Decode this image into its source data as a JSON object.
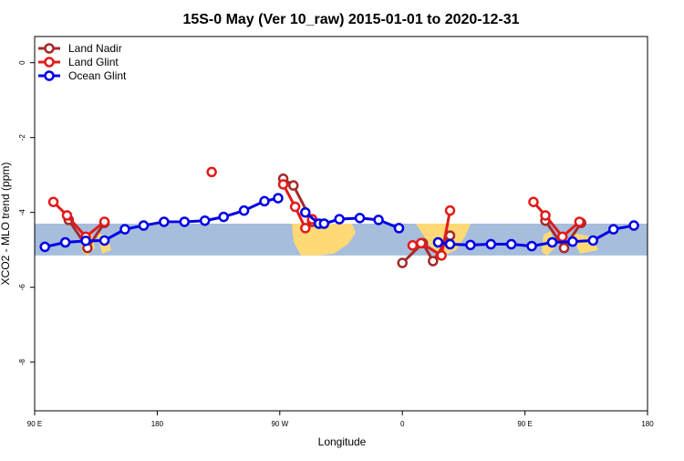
{
  "chart_data": {
    "type": "line",
    "title": "15S-0 May (Ver 10_raw)   2015-01-01 to 2020-12-31",
    "xlabel": "Longitude",
    "ylabel": "XCO2 - MLO trend (ppm)",
    "xlim": [
      90,
      450
    ],
    "ylim": [
      -9.3,
      0.7
    ],
    "x_ticks": [
      {
        "value": 90,
        "label": "90 E"
      },
      {
        "value": 162,
        "label": "180"
      },
      {
        "value": 234,
        "label": "90 W"
      },
      {
        "value": 306,
        "label": "0"
      },
      {
        "value": 378,
        "label": "90 E"
      },
      {
        "value": 450,
        "label": "180"
      }
    ],
    "y_ticks": [
      {
        "value": 0,
        "label": "0"
      },
      {
        "value": -2,
        "label": "-2"
      },
      {
        "value": -4,
        "label": "-4"
      },
      {
        "value": -6,
        "label": "-6"
      },
      {
        "value": -8,
        "label": "-8"
      }
    ],
    "map_band": {
      "y_top": -4.3,
      "y_bottom": -5.15,
      "ocean_color": "#a6bddb",
      "land_color": "#fed976"
    },
    "legend_position": "top-left",
    "series": [
      {
        "name": "Land Nadir",
        "color": "#a52a2a",
        "segments": [
          [
            [
              110,
              -4.2
            ],
            [
              121,
              -4.95
            ],
            [
              131,
              -4.28
            ]
          ],
          [
            [
              236,
              -3.1
            ],
            [
              242,
              -3.28
            ],
            [
              253,
              -4.25
            ]
          ],
          [
            [
              306,
              -5.35
            ],
            [
              318,
              -4.82
            ],
            [
              324,
              -5.3
            ],
            [
              334,
              -4.62
            ]
          ],
          [
            [
              390,
              -4.22
            ],
            [
              401,
              -4.95
            ],
            [
              411,
              -4.28
            ]
          ]
        ]
      },
      {
        "name": "Land Glint",
        "color": "#e31a1a",
        "segments": [
          [
            [
              101,
              -3.72
            ],
            [
              109,
              -4.08
            ],
            [
              120,
              -4.65
            ],
            [
              131,
              -4.25
            ]
          ],
          [
            [
              194,
              -2.92
            ]
          ],
          [
            [
              236,
              -3.25
            ],
            [
              243,
              -3.85
            ],
            [
              249,
              -4.42
            ],
            [
              253,
              -4.18
            ]
          ],
          [
            [
              312,
              -4.88
            ],
            [
              317,
              -4.82
            ],
            [
              329,
              -5.15
            ],
            [
              334,
              -3.95
            ]
          ],
          [
            [
              383,
              -3.72
            ],
            [
              390,
              -4.08
            ],
            [
              400,
              -4.65
            ],
            [
              410,
              -4.25
            ]
          ]
        ]
      },
      {
        "name": "Ocean Glint",
        "color": "#0000e6",
        "segments": [
          [
            [
              96,
              -4.92
            ],
            [
              108,
              -4.8
            ],
            [
              120,
              -4.76
            ],
            [
              131,
              -4.75
            ],
            [
              143,
              -4.45
            ],
            [
              154,
              -4.35
            ],
            [
              166,
              -4.25
            ],
            [
              178,
              -4.25
            ],
            [
              190,
              -4.22
            ],
            [
              201,
              -4.12
            ],
            [
              213,
              -3.95
            ],
            [
              225,
              -3.7
            ],
            [
              233,
              -3.62
            ]
          ],
          [
            [
              249,
              -4.0
            ],
            [
              257,
              -4.3
            ],
            [
              260,
              -4.3
            ],
            [
              269,
              -4.18
            ],
            [
              281,
              -4.15
            ],
            [
              292,
              -4.2
            ],
            [
              304,
              -4.42
            ]
          ],
          [
            [
              327,
              -4.8
            ],
            [
              334,
              -4.85
            ],
            [
              346,
              -4.87
            ],
            [
              358,
              -4.85
            ],
            [
              370,
              -4.85
            ],
            [
              382,
              -4.9
            ],
            [
              394,
              -4.8
            ],
            [
              406,
              -4.78
            ],
            [
              418,
              -4.75
            ],
            [
              430,
              -4.45
            ],
            [
              442,
              -4.35
            ]
          ]
        ]
      }
    ]
  }
}
